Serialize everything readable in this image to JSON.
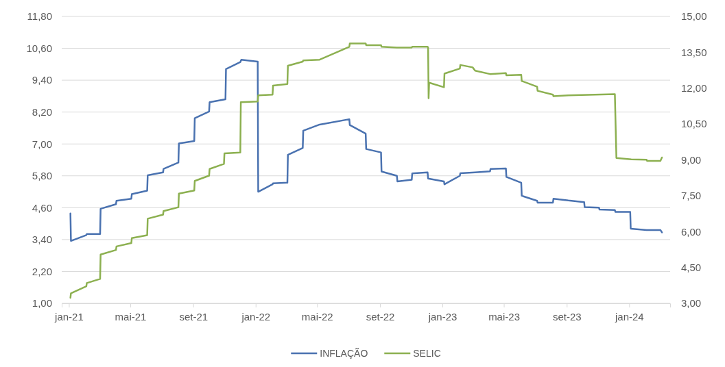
{
  "chart_data": {
    "type": "line",
    "xlim": [
      "2020-12-18",
      "2024-03-21"
    ],
    "xticks": [
      {
        "value": "2021-01-01",
        "label": "jan-21"
      },
      {
        "value": "2021-05-01",
        "label": "mai-21"
      },
      {
        "value": "2021-09-01",
        "label": "set-21"
      },
      {
        "value": "2022-01-01",
        "label": "jan-22"
      },
      {
        "value": "2022-05-01",
        "label": "mai-22"
      },
      {
        "value": "2022-09-01",
        "label": "set-22"
      },
      {
        "value": "2023-01-01",
        "label": "jan-23"
      },
      {
        "value": "2023-05-01",
        "label": "mai-23"
      },
      {
        "value": "2023-09-01",
        "label": "set-23"
      },
      {
        "value": "2024-01-01",
        "label": "jan-24"
      }
    ],
    "ylim": [
      1,
      11.8
    ],
    "yticks": [
      {
        "value": 1,
        "label": "1,00"
      },
      {
        "value": 2.2,
        "label": "2,20"
      },
      {
        "value": 3.4,
        "label": "3,40"
      },
      {
        "value": 4.6,
        "label": "4,60"
      },
      {
        "value": 5.8,
        "label": "5,80"
      },
      {
        "value": 7,
        "label": "7,00"
      },
      {
        "value": 8.2,
        "label": "8,20"
      },
      {
        "value": 9.4,
        "label": "9,40"
      },
      {
        "value": 10.6,
        "label": "10,60"
      },
      {
        "value": 11.8,
        "label": "11,80"
      }
    ],
    "y2lim": [
      3,
      15
    ],
    "y2ticks": [
      {
        "value": 3,
        "label": "3,00"
      },
      {
        "value": 4.5,
        "label": "4,50"
      },
      {
        "value": 6,
        "label": "6,00"
      },
      {
        "value": 7.5,
        "label": "7,50"
      },
      {
        "value": 9,
        "label": "9,00"
      },
      {
        "value": 10.5,
        "label": "10,50"
      },
      {
        "value": 12,
        "label": "12,00"
      },
      {
        "value": 13.5,
        "label": "13,50"
      },
      {
        "value": 15,
        "label": "15,00"
      }
    ],
    "grid": "y",
    "legend": "bottom",
    "series": [
      {
        "name": "INFLAÇÃO",
        "color": "#4a72b0",
        "x": [
          "2021-01-04",
          "2021-01-05",
          "2021-02-04",
          "2021-02-05",
          "2021-03-03",
          "2021-03-04",
          "2021-04-03",
          "2021-04-04",
          "2021-05-03",
          "2021-05-04",
          "2021-06-03",
          "2021-06-04",
          "2021-07-04",
          "2021-07-05",
          "2021-08-03",
          "2021-08-04",
          "2021-09-03",
          "2021-09-04",
          "2021-10-02",
          "2021-10-03",
          "2021-11-03",
          "2021-11-04",
          "2021-12-02",
          "2021-12-04",
          "2022-01-05",
          "2022-01-06",
          "2022-02-03",
          "2022-02-04",
          "2022-03-04",
          "2022-03-05",
          "2022-04-03",
          "2022-04-04",
          "2022-05-06",
          "2022-07-03",
          "2022-07-04",
          "2022-08-04",
          "2022-08-05",
          "2022-09-03",
          "2022-09-04",
          "2022-10-04",
          "2022-10-05",
          "2022-11-02",
          "2022-11-03",
          "2022-12-03",
          "2022-12-04",
          "2023-01-04",
          "2023-01-05",
          "2023-02-04",
          "2023-02-05",
          "2023-03-06",
          "2023-04-04",
          "2023-04-05",
          "2023-05-05",
          "2023-05-06",
          "2023-06-04",
          "2023-06-05",
          "2023-07-05",
          "2023-07-06",
          "2023-08-05",
          "2023-08-06",
          "2023-09-04",
          "2023-10-05",
          "2023-10-06",
          "2023-11-03",
          "2023-11-04",
          "2023-12-04",
          "2023-12-05",
          "2024-01-03",
          "2024-01-04",
          "2024-02-04",
          "2024-03-02",
          "2024-03-05"
        ],
        "values": [
          4.38,
          3.35,
          3.57,
          3.61,
          3.61,
          4.56,
          4.73,
          4.86,
          4.94,
          5.11,
          5.24,
          5.82,
          5.93,
          6.06,
          6.3,
          7.02,
          7.11,
          7.97,
          8.22,
          8.57,
          8.68,
          9.82,
          10.08,
          10.17,
          10.1,
          5.2,
          5.48,
          5.52,
          5.54,
          6.59,
          6.85,
          7.5,
          7.73,
          7.93,
          7.71,
          7.39,
          6.81,
          6.68,
          5.96,
          5.8,
          5.59,
          5.65,
          5.89,
          5.93,
          5.7,
          5.59,
          5.48,
          5.8,
          5.9,
          5.93,
          5.97,
          6.06,
          6.08,
          5.76,
          5.54,
          5.05,
          4.86,
          4.79,
          4.79,
          4.94,
          4.87,
          4.81,
          4.62,
          4.6,
          4.53,
          4.51,
          4.44,
          4.44,
          3.81,
          3.76,
          3.76,
          3.67
        ]
      },
      {
        "name": "SELIC",
        "color": "#8cb050",
        "axis": "y2",
        "x": [
          "2021-01-04",
          "2021-01-05",
          "2021-02-04",
          "2021-02-05",
          "2021-03-03",
          "2021-03-04",
          "2021-04-03",
          "2021-04-04",
          "2021-05-03",
          "2021-05-04",
          "2021-06-03",
          "2021-06-04",
          "2021-07-04",
          "2021-07-05",
          "2021-08-03",
          "2021-08-04",
          "2021-09-03",
          "2021-09-04",
          "2021-10-02",
          "2021-10-03",
          "2021-10-31",
          "2021-11-01",
          "2021-12-02",
          "2021-12-03",
          "2022-01-05",
          "2022-01-06",
          "2022-02-03",
          "2022-02-04",
          "2022-03-04",
          "2022-03-05",
          "2022-04-03",
          "2022-04-04",
          "2022-05-06",
          "2022-07-03",
          "2022-07-04",
          "2022-08-04",
          "2022-08-05",
          "2022-09-03",
          "2022-09-04",
          "2022-10-04",
          "2022-11-02",
          "2022-11-03",
          "2022-12-03",
          "2022-12-04",
          "2022-12-05",
          "2022-12-06",
          "2023-01-04",
          "2023-01-05",
          "2023-02-04",
          "2023-02-05",
          "2023-03-01",
          "2023-03-06",
          "2023-04-04",
          "2023-05-05",
          "2023-05-06",
          "2023-06-04",
          "2023-06-05",
          "2023-07-05",
          "2023-07-06",
          "2023-08-05",
          "2023-08-06",
          "2023-09-04",
          "2023-12-04",
          "2023-12-07",
          "2024-01-05",
          "2024-02-04",
          "2024-02-05",
          "2024-03-02",
          "2024-03-05"
        ],
        "values": [
          3.23,
          3.42,
          3.71,
          3.85,
          4.02,
          5.04,
          5.23,
          5.38,
          5.52,
          5.73,
          5.85,
          6.54,
          6.71,
          6.86,
          7.02,
          7.59,
          7.72,
          8.12,
          8.34,
          8.62,
          8.83,
          9.27,
          9.31,
          11.41,
          11.44,
          11.7,
          11.73,
          12.11,
          12.17,
          12.94,
          13.11,
          13.16,
          13.19,
          13.73,
          13.87,
          13.87,
          13.8,
          13.8,
          13.73,
          13.7,
          13.7,
          13.73,
          13.73,
          13.7,
          11.58,
          12.23,
          12.04,
          12.61,
          12.82,
          12.97,
          12.87,
          12.73,
          12.59,
          12.63,
          12.54,
          12.56,
          12.3,
          12.06,
          11.89,
          11.73,
          11.66,
          11.7,
          11.75,
          9.08,
          9.02,
          9.01,
          8.96,
          8.96,
          9.1
        ]
      }
    ]
  }
}
